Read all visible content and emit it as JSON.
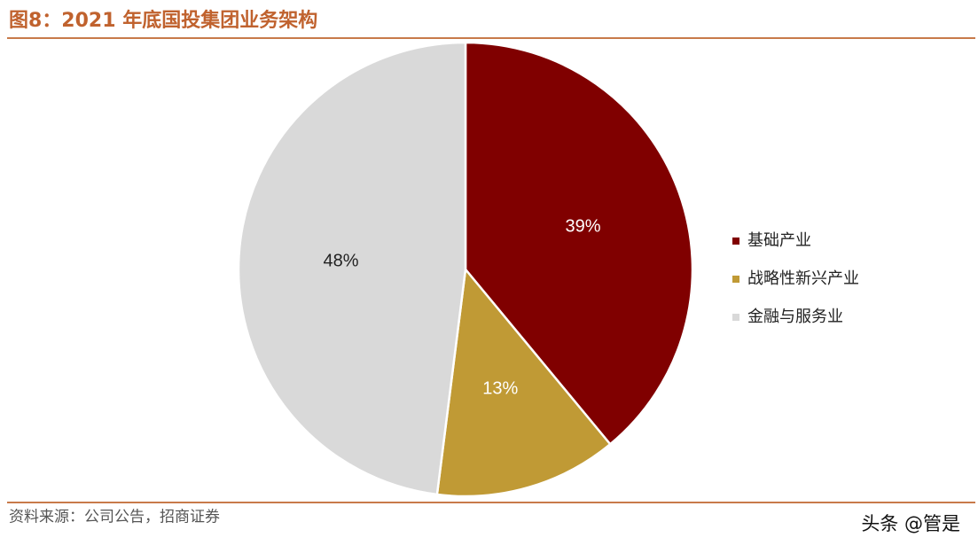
{
  "chart_data": {
    "type": "pie",
    "title": "图8：2021 年底国投集团业务架构",
    "categories": [
      "基础产业",
      "战略性新兴产业",
      "金融与服务业"
    ],
    "values": [
      39,
      13,
      48
    ],
    "value_labels": [
      "39%",
      "13%",
      "48%"
    ],
    "colors": [
      "#800000",
      "#c09a35",
      "#d9d9d9"
    ],
    "legend": "right",
    "source": "资料来源：公司公告，招商证券",
    "watermark": "头条 @管是"
  }
}
